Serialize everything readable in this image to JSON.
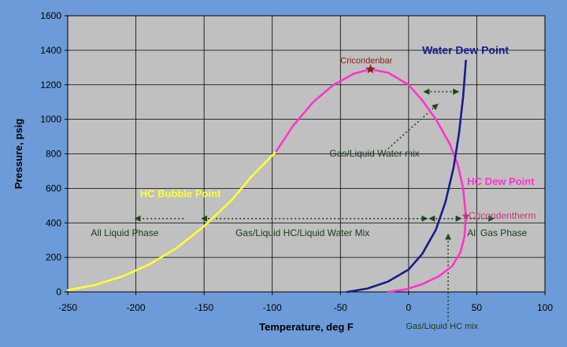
{
  "chart_data": {
    "type": "line",
    "xlabel": "Temperature, deg F",
    "ylabel": "Pressure, psig",
    "xlim": [
      -250,
      100
    ],
    "ylim": [
      0,
      1600
    ],
    "x_ticks": [
      -250,
      -200,
      -150,
      -100,
      -50,
      0,
      50,
      100
    ],
    "y_ticks": [
      0,
      200,
      400,
      600,
      800,
      1000,
      1200,
      1400,
      1600
    ],
    "grid": true,
    "series": [
      {
        "name": "HC Bubble Point",
        "color": "#ffff33",
        "x": [
          -250,
          -230,
          -210,
          -190,
          -170,
          -150,
          -130,
          -115,
          -100,
          -97
        ],
        "y": [
          10,
          40,
          90,
          160,
          255,
          380,
          530,
          670,
          790,
          815
        ]
      },
      {
        "name": "HC Dew Point",
        "color": "#ff33cc",
        "x": [
          -97,
          -85,
          -70,
          -55,
          -40,
          -28,
          -15,
          0,
          10,
          20,
          30,
          36,
          40,
          42,
          41,
          38,
          32,
          22,
          10,
          -2,
          -15
        ],
        "y": [
          815,
          960,
          1100,
          1200,
          1265,
          1290,
          1270,
          1200,
          1110,
          1000,
          860,
          740,
          600,
          440,
          320,
          230,
          150,
          90,
          45,
          15,
          0
        ]
      },
      {
        "name": "Water Dew Point",
        "color": "#1a1a8c",
        "x": [
          -45,
          -30,
          -15,
          0,
          10,
          20,
          27,
          33,
          37,
          40,
          42
        ],
        "y": [
          0,
          20,
          60,
          130,
          220,
          360,
          520,
          720,
          920,
          1130,
          1340
        ]
      }
    ],
    "annotations": [
      {
        "text": "Cricondenbar",
        "x": -28,
        "y": 1290,
        "color": "#8b1a1a"
      },
      {
        "text": "Cricondentherm",
        "x": 42,
        "y": 440,
        "color": "#cc3377"
      },
      {
        "text": "Water Dew Point",
        "color": "#1a1a8c"
      },
      {
        "text": "HC Dew Point",
        "color": "#ff33cc"
      },
      {
        "text": "HC Bubble Point",
        "color": "#ffff33"
      },
      {
        "text": "Gas/Liquid Water mix",
        "color": "#1a3a1a"
      },
      {
        "text": "All Liquid Phase",
        "color": "#1a3a1a"
      },
      {
        "text": "Gas/Liquid HC/Liquid Water Mix",
        "color": "#1a3a1a"
      },
      {
        "text": "All Gas Phase",
        "color": "#1a3a1a"
      },
      {
        "text": "Gas/Liquid HC mix",
        "color": "#1a3a1a"
      }
    ]
  }
}
